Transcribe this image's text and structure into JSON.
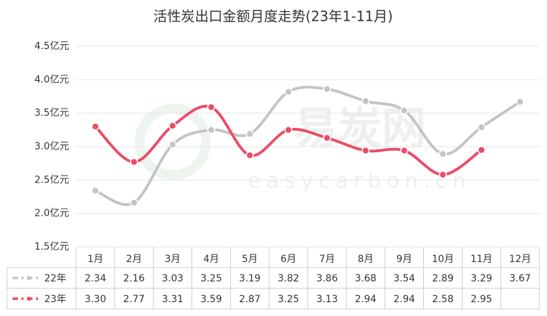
{
  "chart_data": {
    "type": "line",
    "title": "活性炭出口金额月度走势(23年1-11月)",
    "watermark": "易炭网",
    "watermark_subtext": "easycarbon.cn",
    "categories": [
      "1月",
      "2月",
      "3月",
      "4月",
      "5月",
      "6月",
      "7月",
      "8月",
      "9月",
      "10月",
      "11月",
      "12月"
    ],
    "series": [
      {
        "name": "22年",
        "color": "#c4c4c4",
        "values": [
          2.34,
          2.16,
          3.03,
          3.25,
          3.19,
          3.82,
          3.86,
          3.68,
          3.54,
          2.89,
          3.29,
          3.67
        ],
        "value_labels": [
          "2.34",
          "2.16",
          "3.03",
          "3.25",
          "3.19",
          "3.82",
          "3.86",
          "3.68",
          "3.54",
          "2.89",
          "3.29",
          "3.67"
        ]
      },
      {
        "name": "23年",
        "color": "#ea4d68",
        "values": [
          3.3,
          2.77,
          3.31,
          3.59,
          2.87,
          3.25,
          3.13,
          2.94,
          2.94,
          2.58,
          2.95,
          null
        ],
        "value_labels": [
          "3.30",
          "2.77",
          "3.31",
          "3.59",
          "2.87",
          "3.25",
          "3.13",
          "2.94",
          "2.94",
          "2.58",
          "2.95",
          null
        ]
      }
    ],
    "ylim": [
      1.5,
      4.5
    ],
    "yticks": [
      {
        "value": 1.5,
        "label": "1.5亿元"
      },
      {
        "value": 2.0,
        "label": "2.0亿元"
      },
      {
        "value": 2.5,
        "label": "2.5亿元"
      },
      {
        "value": 3.0,
        "label": "3.0亿元"
      },
      {
        "value": 3.5,
        "label": "3.5亿元"
      },
      {
        "value": 4.0,
        "label": "4.0亿元"
      },
      {
        "value": 4.5,
        "label": "4.5亿元"
      }
    ],
    "grid": true,
    "smooth": true,
    "data_table": true
  }
}
